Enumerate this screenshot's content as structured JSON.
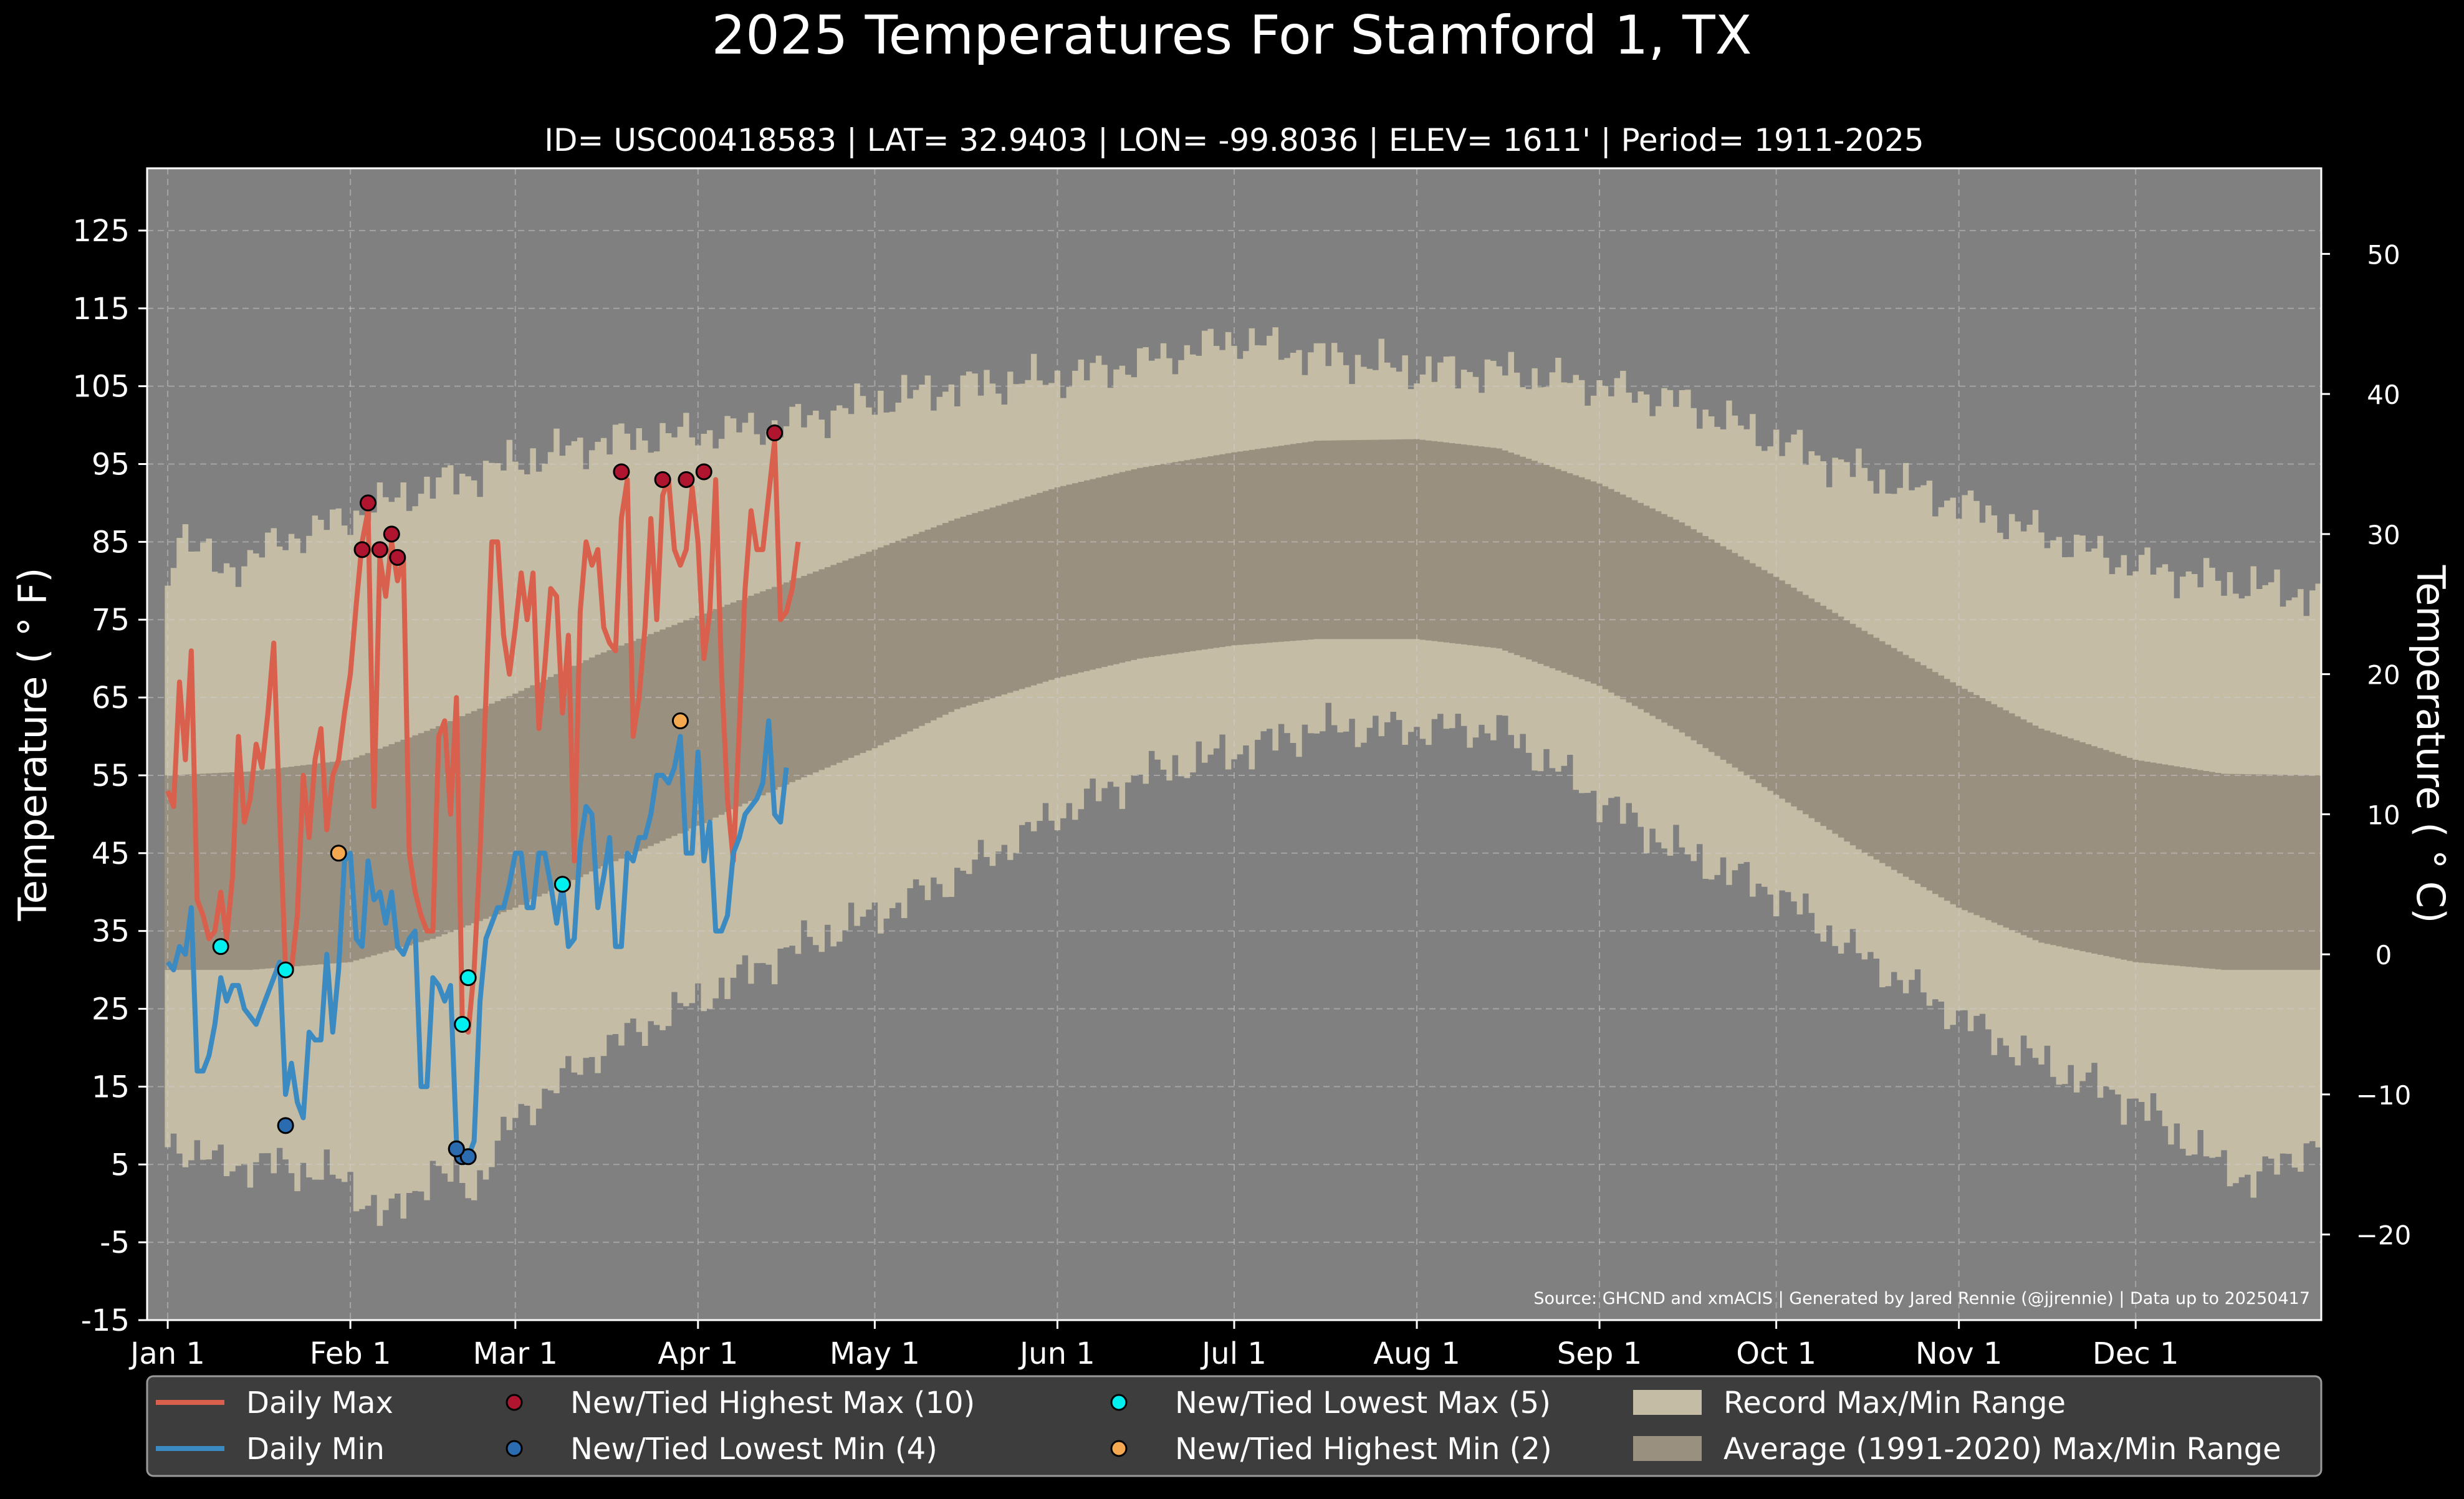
{
  "chart_data": {
    "type": "line",
    "title": "2025 Temperatures For Stamford 1, TX",
    "subtitle": "ID= USC00418583 | LAT= 32.9403 | LON= -99.8036 | ELEV= 1611' | Period= 1911-2025",
    "ylabel_left": "Temperature ($^\\circ$F)",
    "ylabel_left_display": "Temperature ( ° F)",
    "ylabel_right_display": "Temperature ( ° C)",
    "source_note": "Source: GHCND and xmACIS | Generated by Jared Rennie (@jjrennie) | Data up to 20250417",
    "ylim": [
      -15,
      133
    ],
    "xlim": [
      -2.5,
      366.5
    ],
    "yticks": [
      "125",
      "115",
      "105",
      "95",
      "85",
      "75",
      "65",
      "55",
      "45",
      "35",
      "25",
      "15",
      "5",
      "-5",
      "-15"
    ],
    "yticks_celsius": [
      "50",
      "40",
      "30",
      "20",
      "10",
      "0",
      "−10",
      "−20"
    ],
    "xticks": [
      {
        "label": "Jan 1",
        "day": 1
      },
      {
        "label": "Feb 1",
        "day": 32
      },
      {
        "label": "Mar 1",
        "day": 60
      },
      {
        "label": "Apr 1",
        "day": 91
      },
      {
        "label": "May 1",
        "day": 121
      },
      {
        "label": "Jun 1",
        "day": 152
      },
      {
        "label": "Jul 1",
        "day": 182
      },
      {
        "label": "Aug 1",
        "day": 213
      },
      {
        "label": "Sep 1",
        "day": 244
      },
      {
        "label": "Oct 1",
        "day": 274
      },
      {
        "label": "Nov 1",
        "day": 305
      },
      {
        "label": "Dec 1",
        "day": 335
      }
    ],
    "grid": true,
    "legend_position": "bottom",
    "colors": {
      "background": "#000000",
      "plot_bg": "#808080",
      "record_range": "#c4bca4",
      "normal_range": "#9a9080",
      "daily_max": "#d9604c",
      "daily_min": "#3b8bc2",
      "new_high_max": "#b01530",
      "new_low_min": "#2b6cb0",
      "new_low_max": "#00f0f0",
      "new_high_min": "#f4a850"
    },
    "legend": [
      {
        "label": "Daily Max",
        "kind": "line",
        "color": "#d9604c"
      },
      {
        "label": "Daily Min",
        "kind": "line",
        "color": "#3b8bc2"
      },
      {
        "label": "New/Tied Highest Max (10)",
        "kind": "dot",
        "color": "#b01530"
      },
      {
        "label": "New/Tied Lowest Min (4)",
        "kind": "dot",
        "color": "#2b6cb0"
      },
      {
        "label": "New/Tied Lowest Max (5)",
        "kind": "dot",
        "color": "#00f0f0"
      },
      {
        "label": "New/Tied Highest Min (2)",
        "kind": "dot",
        "color": "#f4a850"
      },
      {
        "label": "Record Max/Min Range",
        "kind": "patch",
        "color": "#c4bca4"
      },
      {
        "label": "Average (1991-2020) Max/Min Range",
        "kind": "patch",
        "color": "#9a9080"
      }
    ],
    "record_max_anchors": [
      [
        1,
        80
      ],
      [
        3,
        87
      ],
      [
        10,
        81
      ],
      [
        20,
        85
      ],
      [
        31,
        88
      ],
      [
        45,
        92
      ],
      [
        59,
        95
      ],
      [
        75,
        98
      ],
      [
        91,
        99
      ],
      [
        105,
        100
      ],
      [
        121,
        103
      ],
      [
        135,
        105
      ],
      [
        152,
        106
      ],
      [
        166,
        108
      ],
      [
        182,
        111
      ],
      [
        196,
        109
      ],
      [
        213,
        107
      ],
      [
        227,
        107
      ],
      [
        244,
        105
      ],
      [
        258,
        103
      ],
      [
        274,
        98
      ],
      [
        288,
        94
      ],
      [
        305,
        90
      ],
      [
        319,
        86
      ],
      [
        335,
        82
      ],
      [
        349,
        80
      ],
      [
        366,
        78
      ]
    ],
    "record_min_anchors": [
      [
        1,
        8
      ],
      [
        10,
        5
      ],
      [
        20,
        5
      ],
      [
        31,
        3
      ],
      [
        38,
        -2
      ],
      [
        46,
        4
      ],
      [
        53,
        2
      ],
      [
        60,
        11
      ],
      [
        75,
        20
      ],
      [
        91,
        26
      ],
      [
        105,
        32
      ],
      [
        121,
        37
      ],
      [
        135,
        42
      ],
      [
        152,
        50
      ],
      [
        166,
        55
      ],
      [
        182,
        58
      ],
      [
        196,
        61
      ],
      [
        213,
        61
      ],
      [
        227,
        61
      ],
      [
        244,
        52
      ],
      [
        258,
        45
      ],
      [
        274,
        40
      ],
      [
        288,
        32
      ],
      [
        305,
        24
      ],
      [
        319,
        18
      ],
      [
        335,
        13
      ],
      [
        349,
        5
      ],
      [
        355,
        3
      ],
      [
        366,
        8
      ]
    ],
    "normal_max_anchors": [
      [
        1,
        55
      ],
      [
        15,
        55.5
      ],
      [
        32,
        57
      ],
      [
        46,
        61
      ],
      [
        60,
        65.5
      ],
      [
        74,
        70.5
      ],
      [
        91,
        75.5
      ],
      [
        105,
        79.5
      ],
      [
        121,
        84
      ],
      [
        135,
        88
      ],
      [
        152,
        92
      ],
      [
        166,
        94.5
      ],
      [
        182,
        96.5
      ],
      [
        196,
        98
      ],
      [
        213,
        98.2
      ],
      [
        227,
        97
      ],
      [
        244,
        92.5
      ],
      [
        258,
        87.5
      ],
      [
        274,
        80.5
      ],
      [
        288,
        74
      ],
      [
        305,
        66.5
      ],
      [
        319,
        61
      ],
      [
        335,
        57
      ],
      [
        350,
        55.2
      ],
      [
        366,
        55
      ]
    ],
    "normal_min_anchors": [
      [
        1,
        30
      ],
      [
        15,
        30
      ],
      [
        32,
        31
      ],
      [
        46,
        34
      ],
      [
        60,
        38
      ],
      [
        74,
        43
      ],
      [
        91,
        48.5
      ],
      [
        105,
        53.5
      ],
      [
        121,
        58.5
      ],
      [
        135,
        63.5
      ],
      [
        152,
        67.5
      ],
      [
        166,
        70
      ],
      [
        182,
        71.7
      ],
      [
        196,
        72.5
      ],
      [
        213,
        72.5
      ],
      [
        227,
        71.3
      ],
      [
        244,
        66.5
      ],
      [
        258,
        60.5
      ],
      [
        274,
        52.5
      ],
      [
        288,
        45.5
      ],
      [
        305,
        38
      ],
      [
        319,
        33.5
      ],
      [
        335,
        31
      ],
      [
        350,
        30
      ],
      [
        366,
        30
      ]
    ],
    "daily_max": [
      [
        1,
        53
      ],
      [
        2,
        51
      ],
      [
        3,
        67
      ],
      [
        4,
        57
      ],
      [
        5,
        71
      ],
      [
        6,
        39
      ],
      [
        7,
        37
      ],
      [
        8,
        34
      ],
      [
        9,
        35
      ],
      [
        10,
        40
      ],
      [
        11,
        34
      ],
      [
        12,
        42
      ],
      [
        13,
        60
      ],
      [
        14,
        49
      ],
      [
        15,
        52
      ],
      [
        16,
        59
      ],
      [
        17,
        56
      ],
      [
        18,
        63
      ],
      [
        19,
        72
      ],
      [
        20,
        50
      ],
      [
        21,
        30
      ],
      [
        22,
        30
      ],
      [
        23,
        37
      ],
      [
        24,
        55
      ],
      [
        25,
        47
      ],
      [
        26,
        57
      ],
      [
        27,
        61
      ],
      [
        28,
        48
      ],
      [
        29,
        55
      ],
      [
        30,
        57
      ],
      [
        31,
        63
      ],
      [
        32,
        68
      ],
      [
        33,
        77
      ],
      [
        34,
        85
      ],
      [
        35,
        89
      ],
      [
        36,
        51
      ],
      [
        37,
        83
      ],
      [
        38,
        78
      ],
      [
        39,
        85
      ],
      [
        40,
        80
      ],
      [
        41,
        83
      ],
      [
        42,
        45
      ],
      [
        43,
        40
      ],
      [
        44,
        37
      ],
      [
        45,
        35
      ],
      [
        46,
        35
      ],
      [
        47,
        60
      ],
      [
        48,
        62
      ],
      [
        49,
        50
      ],
      [
        50,
        65
      ],
      [
        51,
        23
      ],
      [
        52,
        22
      ],
      [
        53,
        30
      ],
      [
        54,
        45
      ],
      [
        55,
        65
      ],
      [
        56,
        85
      ],
      [
        57,
        85
      ],
      [
        58,
        73
      ],
      [
        59,
        68
      ],
      [
        60,
        74
      ],
      [
        61,
        81
      ],
      [
        62,
        75
      ],
      [
        63,
        81
      ],
      [
        64,
        61
      ],
      [
        65,
        69
      ],
      [
        66,
        79
      ],
      [
        67,
        78
      ],
      [
        68,
        63
      ],
      [
        69,
        73
      ],
      [
        70,
        44
      ],
      [
        71,
        76
      ],
      [
        72,
        85
      ],
      [
        73,
        82
      ],
      [
        74,
        84
      ],
      [
        75,
        74
      ],
      [
        76,
        72
      ],
      [
        77,
        71
      ],
      [
        78,
        88
      ],
      [
        79,
        93
      ],
      [
        80,
        60
      ],
      [
        81,
        65
      ],
      [
        82,
        74
      ],
      [
        83,
        88
      ],
      [
        84,
        75
      ],
      [
        85,
        91
      ],
      [
        86,
        93
      ],
      [
        87,
        84
      ],
      [
        88,
        82
      ],
      [
        89,
        84
      ],
      [
        90,
        92
      ],
      [
        91,
        85
      ],
      [
        92,
        70
      ],
      [
        93,
        76
      ],
      [
        94,
        93
      ],
      [
        95,
        68
      ],
      [
        96,
        52
      ],
      [
        97,
        44
      ],
      [
        98,
        61
      ],
      [
        99,
        79
      ],
      [
        100,
        89
      ],
      [
        101,
        84
      ],
      [
        102,
        84
      ],
      [
        103,
        91
      ],
      [
        104,
        98
      ],
      [
        105,
        75
      ],
      [
        106,
        76
      ],
      [
        107,
        79
      ],
      [
        108,
        85
      ]
    ],
    "daily_min": [
      [
        1,
        31
      ],
      [
        2,
        30
      ],
      [
        3,
        33
      ],
      [
        4,
        32
      ],
      [
        5,
        38
      ],
      [
        6,
        17
      ],
      [
        7,
        17
      ],
      [
        8,
        19
      ],
      [
        9,
        23
      ],
      [
        10,
        29
      ],
      [
        11,
        26
      ],
      [
        12,
        28
      ],
      [
        13,
        28
      ],
      [
        14,
        25
      ],
      [
        15,
        24
      ],
      [
        16,
        23
      ],
      [
        17,
        25
      ],
      [
        18,
        27
      ],
      [
        19,
        29
      ],
      [
        20,
        31
      ],
      [
        21,
        14
      ],
      [
        22,
        18
      ],
      [
        23,
        13
      ],
      [
        24,
        11
      ],
      [
        25,
        22
      ],
      [
        26,
        21
      ],
      [
        27,
        21
      ],
      [
        28,
        32
      ],
      [
        29,
        22
      ],
      [
        30,
        30
      ],
      [
        31,
        44
      ],
      [
        32,
        45
      ],
      [
        33,
        34
      ],
      [
        34,
        33
      ],
      [
        35,
        44
      ],
      [
        36,
        39
      ],
      [
        37,
        40
      ],
      [
        38,
        36
      ],
      [
        39,
        40
      ],
      [
        40,
        33
      ],
      [
        41,
        32
      ],
      [
        42,
        34
      ],
      [
        43,
        35
      ],
      [
        44,
        15
      ],
      [
        45,
        15
      ],
      [
        46,
        29
      ],
      [
        47,
        28
      ],
      [
        48,
        26
      ],
      [
        49,
        28
      ],
      [
        50,
        8
      ],
      [
        51,
        7
      ],
      [
        52,
        6
      ],
      [
        53,
        8
      ],
      [
        54,
        26
      ],
      [
        55,
        34
      ],
      [
        56,
        36
      ],
      [
        57,
        38
      ],
      [
        58,
        38
      ],
      [
        59,
        41
      ],
      [
        60,
        45
      ],
      [
        61,
        45
      ],
      [
        62,
        38
      ],
      [
        63,
        38
      ],
      [
        64,
        45
      ],
      [
        65,
        45
      ],
      [
        66,
        41
      ],
      [
        67,
        36
      ],
      [
        68,
        41
      ],
      [
        69,
        33
      ],
      [
        70,
        34
      ],
      [
        71,
        46
      ],
      [
        72,
        51
      ],
      [
        73,
        50
      ],
      [
        74,
        38
      ],
      [
        75,
        42
      ],
      [
        76,
        47
      ],
      [
        77,
        33
      ],
      [
        78,
        33
      ],
      [
        79,
        45
      ],
      [
        80,
        44
      ],
      [
        81,
        47
      ],
      [
        82,
        47
      ],
      [
        83,
        50
      ],
      [
        84,
        55
      ],
      [
        85,
        55
      ],
      [
        86,
        54
      ],
      [
        87,
        56
      ],
      [
        88,
        60
      ],
      [
        89,
        45
      ],
      [
        90,
        45
      ],
      [
        91,
        58
      ],
      [
        92,
        44
      ],
      [
        93,
        49
      ],
      [
        94,
        35
      ],
      [
        95,
        35
      ],
      [
        96,
        37
      ],
      [
        97,
        45
      ],
      [
        98,
        47
      ],
      [
        99,
        50
      ],
      [
        100,
        51
      ],
      [
        101,
        52
      ],
      [
        102,
        54
      ],
      [
        103,
        62
      ],
      [
        104,
        50
      ],
      [
        105,
        49
      ],
      [
        106,
        56
      ]
    ],
    "new_tied_highest_max": [
      [
        34,
        84
      ],
      [
        35,
        90
      ],
      [
        37,
        84
      ],
      [
        39,
        86
      ],
      [
        40,
        83
      ],
      [
        78,
        94
      ],
      [
        85,
        93
      ],
      [
        89,
        93
      ],
      [
        92,
        94
      ],
      [
        104,
        99
      ]
    ],
    "new_tied_lowest_min": [
      [
        21,
        10
      ],
      [
        50,
        7
      ],
      [
        51,
        6
      ],
      [
        52,
        6
      ],
      [
        50,
        7
      ]
    ],
    "new_tied_lowest_max": [
      [
        10,
        33
      ],
      [
        21,
        30
      ],
      [
        51,
        23
      ],
      [
        52,
        29
      ],
      [
        68,
        41
      ]
    ],
    "new_tied_highest_min": [
      [
        30,
        45
      ],
      [
        88,
        62
      ]
    ]
  }
}
